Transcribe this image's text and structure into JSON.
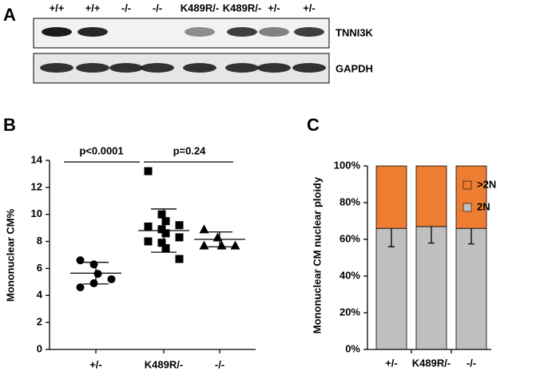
{
  "panel_labels": [
    "A",
    "B",
    "C"
  ],
  "blot": {
    "lanes": [
      "+/+",
      "+/+",
      "-/-",
      "-/-",
      "K489R/-",
      "K489R/-",
      "+/-",
      "+/-"
    ],
    "bands": [
      "TNNI3K",
      "GAPDH"
    ]
  },
  "chart_data": [
    {
      "type": "scatter",
      "ylabel": "Mononuclear CM%",
      "categories": [
        "+/-",
        "K489R/-",
        "-/-"
      ],
      "markers": [
        "circle",
        "square",
        "triangle"
      ],
      "values": [
        [
          6.6,
          6.3,
          5.6,
          5.2,
          4.6,
          4.9
        ],
        [
          13.2,
          10.0,
          9.5,
          9.2,
          9.1,
          8.9,
          8.6,
          8.3,
          8.0,
          7.9,
          7.5,
          6.7
        ],
        [
          8.9,
          8.3,
          7.7,
          7.7,
          7.7
        ]
      ],
      "means": [
        5.65,
        8.8,
        8.15
      ],
      "sds": [
        0.8,
        1.6,
        0.55
      ],
      "annotations": [
        "p<0.0001",
        "p=0.24"
      ],
      "ylim": [
        0,
        14
      ],
      "yticks": [
        0,
        2,
        4,
        6,
        8,
        10,
        12,
        14
      ]
    },
    {
      "type": "stacked_bar",
      "ylabel": "Mononuclear CM nuclear ploidy",
      "categories": [
        "+/-",
        "K489R/-",
        "-/-"
      ],
      "series": [
        {
          "name": "2N",
          "color": "#bfbfbf",
          "values": [
            66,
            67,
            66
          ],
          "errors": [
            10,
            9,
            8.5
          ]
        },
        {
          "name": ">2N",
          "color": "#ed7d31",
          "values": [
            34,
            33,
            34
          ]
        }
      ],
      "ylim": [
        0,
        100
      ],
      "yticks": [
        {
          "value": 0,
          "label": "0%"
        },
        {
          "value": 20,
          "label": "20%"
        },
        {
          "value": 40,
          "label": "40%"
        },
        {
          "value": 60,
          "label": "60%"
        },
        {
          "value": 80,
          "label": "80%"
        },
        {
          "value": 100,
          "label": "100%"
        }
      ]
    }
  ]
}
